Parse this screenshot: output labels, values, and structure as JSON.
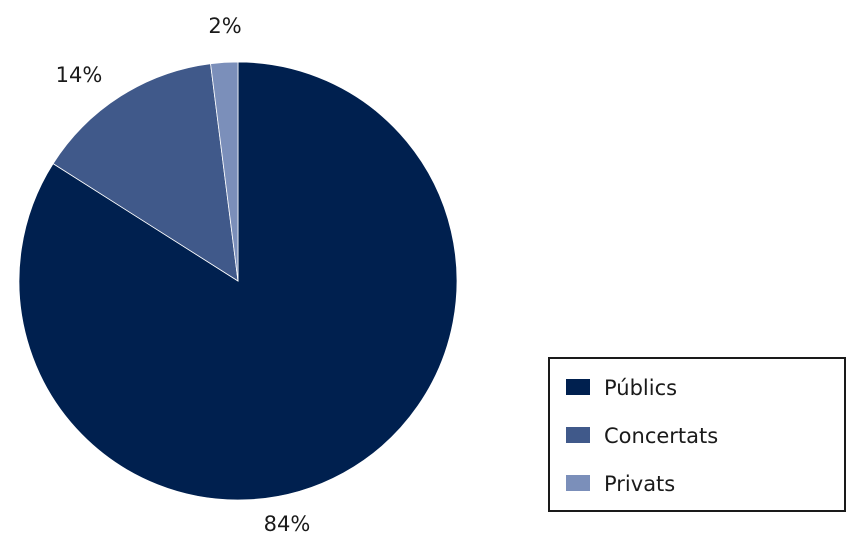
{
  "chart_data": {
    "type": "pie",
    "categories": [
      "Públics",
      "Concertats",
      "Privats"
    ],
    "values": [
      84,
      14,
      2
    ],
    "labels": [
      "84%",
      "14%",
      "2%"
    ],
    "colors": [
      "#00204f",
      "#40598a",
      "#7b8fba"
    ],
    "start": "12 o'clock",
    "direction": "clockwise",
    "legend": "bottom-right"
  }
}
